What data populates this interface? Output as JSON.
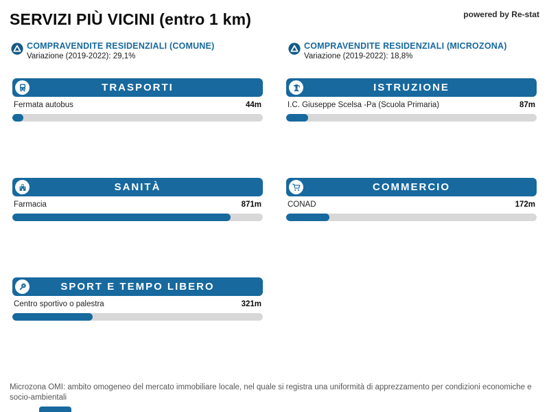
{
  "header": {
    "title": "SERVIZI PIÙ VICINI (entro 1 km)",
    "powered_by": "powered by Re-stat"
  },
  "stats": [
    {
      "icon": "delta-circle-icon",
      "label": "COMPRAVENDITE RESIDENZIALI (COMUNE)",
      "variation": "Variazione (2019-2022): 29,1%"
    },
    {
      "icon": "delta-circle-icon",
      "label": "COMPRAVENDITE RESIDENZIALI (MICROZONA)",
      "variation": "Variazione (2019-2022): 18,8%"
    }
  ],
  "cards": [
    {
      "title": "TRASPORTI",
      "icon": "bus-icon",
      "item": "Fermata autobus",
      "distance": "44m",
      "bar_pct": 4.4
    },
    {
      "title": "ISTRUZIONE",
      "icon": "graduate-icon",
      "item": "I.C. Giuseppe Scelsa -Pa (Scuola Primaria)",
      "distance": "87m",
      "bar_pct": 8.7
    },
    {
      "title": "SANITÀ",
      "icon": "hospital-icon",
      "item": "Farmacia",
      "distance": "871m",
      "bar_pct": 87.1
    },
    {
      "title": "COMMERCIO",
      "icon": "cart-icon",
      "item": "CONAD",
      "distance": "172m",
      "bar_pct": 17.2
    },
    {
      "title": "SPORT E TEMPO LIBERO",
      "icon": "racket-icon",
      "item": "Centro sportivo o palestra",
      "distance": "321m",
      "bar_pct": 32.1
    }
  ],
  "footnote": "Microzona OMI: ambito omogeneo del mercato immobiliare locale, nel quale si registra una uniformità di apprezzamento per condizioni economiche e socio-ambientali",
  "colors": {
    "accent_blue": "#17699e",
    "delta_circle_blue": "#155a87",
    "bar_track_gray": "#d8d8d8"
  },
  "chart_data": {
    "type": "bar",
    "title": "SERVIZI PIÙ VICINI (entro 1 km)",
    "categories": [
      "TRASPORTI - Fermata autobus",
      "ISTRUZIONE - I.C. Giuseppe Scelsa -Pa (Scuola Primaria)",
      "SANITÀ - Farmacia",
      "COMMERCIO - CONAD",
      "SPORT E TEMPO LIBERO - Centro sportivo o palestra"
    ],
    "values": [
      44,
      87,
      871,
      172,
      321
    ],
    "unit": "m",
    "xlim": [
      0,
      1000
    ],
    "legend": false,
    "annotations": [
      "Variazione (2019-2022) Comune: 29,1%",
      "Variazione (2019-2022) Microzona: 18,8%"
    ]
  }
}
